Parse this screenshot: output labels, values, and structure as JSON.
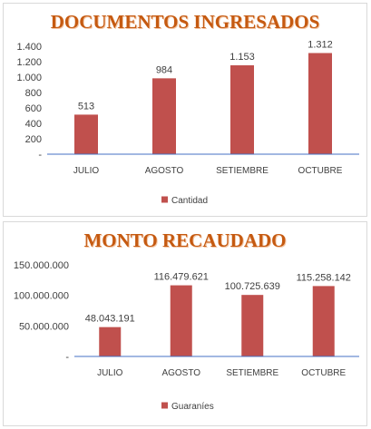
{
  "chart_data": [
    {
      "type": "bar",
      "title": "DOCUMENTOS INGRESADOS",
      "categories": [
        "JULIO",
        "AGOSTO",
        "SETIEMBRE",
        "OCTUBRE"
      ],
      "series": [
        {
          "name": "Cantidad",
          "values": [
            513,
            984,
            1153,
            1312
          ]
        }
      ],
      "value_labels": [
        "513",
        "984",
        "1.153",
        "1.312"
      ],
      "ylim": [
        0,
        1400
      ],
      "yticks": [
        0,
        200,
        400,
        600,
        800,
        1000,
        1200,
        1400
      ],
      "ytick_labels": [
        "-",
        "200",
        "400",
        "600",
        "800",
        "1.000",
        "1.200",
        "1.400"
      ],
      "legend_position": "bottom",
      "grid": false,
      "colors": {
        "bar": "#c0504d",
        "axis": "#4472c4",
        "title": "#c55a11"
      }
    },
    {
      "type": "bar",
      "title": "MONTO RECAUDADO",
      "categories": [
        "JULIO",
        "AGOSTO",
        "SETIEMBRE",
        "OCTUBRE"
      ],
      "series": [
        {
          "name": "Guaraníes",
          "values": [
            48043191,
            116479621,
            100725639,
            115258142
          ]
        }
      ],
      "value_labels": [
        "48.043.191",
        "116.479.621",
        "100.725.639",
        "115.258.142"
      ],
      "ylim": [
        0,
        150000000
      ],
      "yticks": [
        0,
        50000000,
        100000000,
        150000000
      ],
      "ytick_labels": [
        "-",
        "50.000.000",
        "100.000.000",
        "150.000.000"
      ],
      "legend_position": "bottom",
      "grid": false,
      "colors": {
        "bar": "#c0504d",
        "axis": "#4472c4",
        "title": "#c55a11"
      }
    }
  ]
}
